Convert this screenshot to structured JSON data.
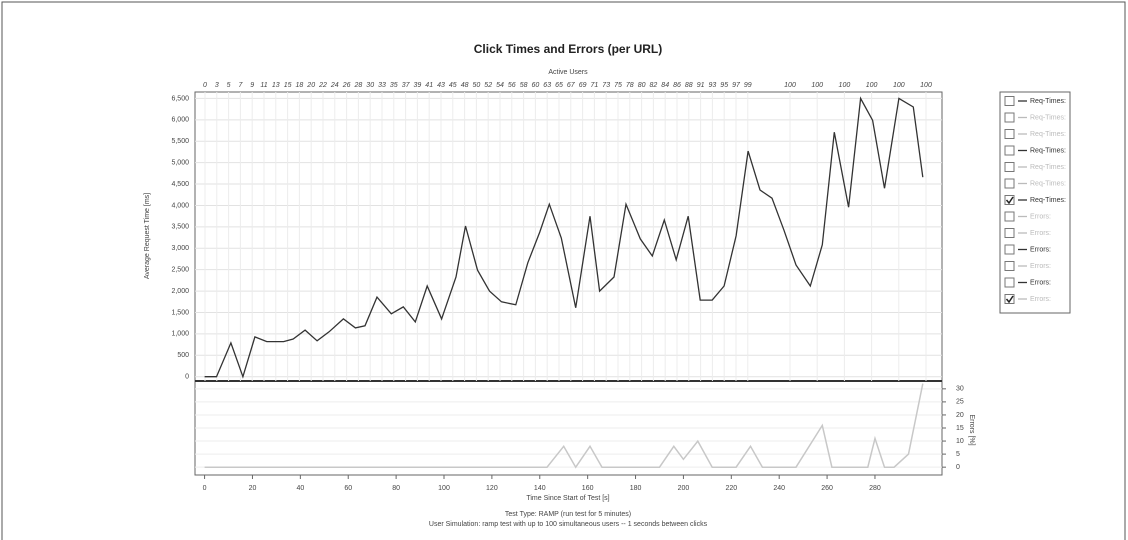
{
  "chart_data": {
    "type": "line",
    "title": "Click Times and Errors (per URL)",
    "top_axis_label": "Active Users",
    "top_axis_ticks": [
      "0",
      "3",
      "5",
      "7",
      "9",
      "11",
      "13",
      "15",
      "18",
      "20",
      "22",
      "24",
      "26",
      "28",
      "30",
      "33",
      "35",
      "37",
      "39",
      "41",
      "43",
      "45",
      "48",
      "50",
      "52",
      "54",
      "56",
      "58",
      "60",
      "63",
      "65",
      "67",
      "69",
      "71",
      "73",
      "75",
      "78",
      "80",
      "82",
      "84",
      "86",
      "88",
      "91",
      "93",
      "95",
      "97",
      "99",
      "100",
      "100",
      "100",
      "100",
      "100",
      "100"
    ],
    "xlabel": "Time Since Start of Test [s]",
    "ylabel": "Average Request Time [ms]",
    "y2label": "Errors [%]",
    "notes": [
      "Test Type: RAMP (run test for 5 minutes)",
      "User Simulation: ramp test with up to 100 simultaneous users -- 1 seconds between clicks"
    ],
    "xlim": [
      -4,
      308
    ],
    "xticks": [
      0,
      20,
      40,
      60,
      80,
      100,
      120,
      140,
      160,
      180,
      200,
      220,
      240,
      260,
      280
    ],
    "ylim": [
      -100,
      6650
    ],
    "yticks": [
      0,
      500,
      {
        "value": 1000,
        "label": "1,000"
      },
      {
        "value": 1500,
        "label": "1,500"
      },
      {
        "value": 2000,
        "label": "2,000"
      },
      {
        "value": 2500,
        "label": "2,500"
      },
      {
        "value": 3000,
        "label": "3,000"
      },
      {
        "value": 3500,
        "label": "3,500"
      },
      {
        "value": 4000,
        "label": "4,000"
      },
      {
        "value": 4500,
        "label": "4,500"
      },
      {
        "value": 5000,
        "label": "5,000"
      },
      {
        "value": 5500,
        "label": "5,500"
      },
      {
        "value": 6000,
        "label": "6,000"
      },
      {
        "value": 6500,
        "label": "6,500"
      }
    ],
    "y2lim": [
      -3,
      33
    ],
    "y2ticks": [
      0,
      5,
      10,
      15,
      20,
      25,
      30
    ],
    "grid": true,
    "series": [
      {
        "color": "#333333",
        "x": [
          0,
          5,
          11,
          16,
          21,
          26,
          33,
          37,
          42,
          47,
          52,
          58,
          63,
          67,
          72,
          78,
          83,
          88,
          93,
          99,
          105,
          109,
          114,
          119,
          124,
          130,
          135,
          140,
          144,
          149,
          155,
          161,
          165,
          171,
          176,
          182,
          187,
          192,
          197,
          202,
          207,
          212,
          217,
          222,
          227,
          232,
          237,
          242,
          247,
          253,
          258,
          263,
          269,
          274,
          279,
          284,
          290,
          296,
          300
        ],
        "values": [
          0,
          0,
          790,
          0,
          930,
          820,
          820,
          880,
          1090,
          840,
          1050,
          1350,
          1140,
          1190,
          1860,
          1470,
          1630,
          1280,
          2120,
          1350,
          2330,
          3520,
          2490,
          2000,
          1750,
          1680,
          2660,
          3380,
          4030,
          3240,
          1610,
          3750,
          2000,
          2330,
          4030,
          3220,
          2820,
          3660,
          2730,
          3750,
          1790,
          1790,
          2120,
          3290,
          5270,
          4360,
          4170,
          3420,
          2610,
          2120,
          3080,
          5710,
          3960,
          6500,
          5990,
          4400,
          6500,
          6300,
          4660
        ]
      },
      {
        "color": "#c8c8c8",
        "axis": "y2",
        "x": [
          0,
          143,
          150,
          155,
          161,
          166,
          190,
          196,
          200,
          206,
          212,
          222,
          228,
          233,
          247,
          258,
          262,
          277,
          280,
          284,
          288,
          294,
          300
        ],
        "values": [
          0,
          0,
          8,
          0,
          8,
          0,
          0,
          8,
          3,
          10,
          0,
          0,
          8,
          0,
          0,
          16,
          0,
          0,
          11,
          0,
          0,
          5,
          32
        ]
      }
    ],
    "legend": [
      {
        "label": "Req-Times:",
        "checked": false,
        "dimmed": false
      },
      {
        "label": "Req-Times:",
        "checked": false,
        "dimmed": true
      },
      {
        "label": "Req-Times:",
        "checked": false,
        "dimmed": true
      },
      {
        "label": "Req-Times:",
        "checked": false,
        "dimmed": false
      },
      {
        "label": "Req-Times:",
        "checked": false,
        "dimmed": true
      },
      {
        "label": "Req-Times:",
        "checked": false,
        "dimmed": true
      },
      {
        "label": "Req-Times:",
        "checked": true,
        "dimmed": false
      },
      {
        "label": "Errors:",
        "checked": false,
        "dimmed": true
      },
      {
        "label": "Errors:",
        "checked": false,
        "dimmed": true
      },
      {
        "label": "Errors:",
        "checked": false,
        "dimmed": false
      },
      {
        "label": "Errors:",
        "checked": false,
        "dimmed": true
      },
      {
        "label": "Errors:",
        "checked": false,
        "dimmed": false
      },
      {
        "label": "Errors:",
        "checked": true,
        "dimmed": true
      }
    ]
  }
}
